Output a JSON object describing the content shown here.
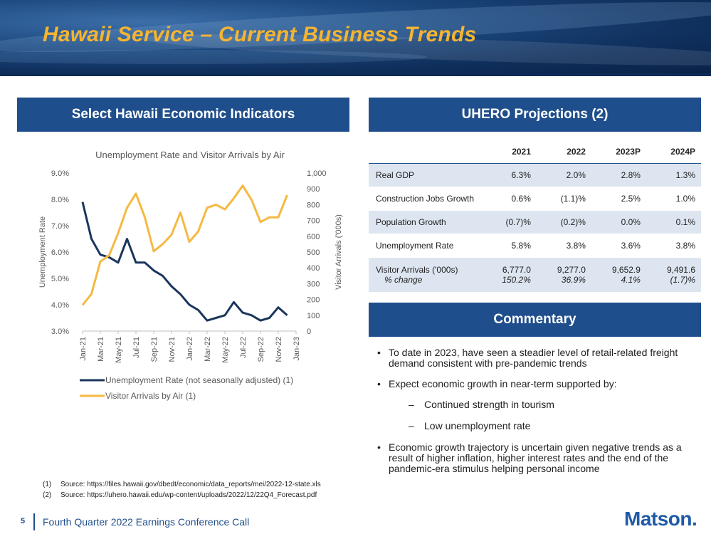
{
  "header": {
    "title": "Hawaii Service – Current Business Trends"
  },
  "left_panel": {
    "heading": "Select Hawaii Economic Indicators"
  },
  "right_panel": {
    "heading": "UHERO Projections (2)"
  },
  "commentary_panel": {
    "heading": "Commentary"
  },
  "chart_data": {
    "type": "line",
    "title": "Unemployment Rate and Visitor Arrivals by Air",
    "x": [
      "Jan-21",
      "Feb-21",
      "Mar-21",
      "Apr-21",
      "May-21",
      "Jun-21",
      "Jul-21",
      "Aug-21",
      "Sep-21",
      "Oct-21",
      "Nov-21",
      "Dec-21",
      "Jan-22",
      "Feb-22",
      "Mar-22",
      "Apr-22",
      "May-22",
      "Jun-22",
      "Jul-22",
      "Aug-22",
      "Sep-22",
      "Oct-22",
      "Nov-22",
      "Dec-22",
      "Jan-23"
    ],
    "x_tick_labels": [
      "Jan-21",
      "Mar-21",
      "May-21",
      "Jul-21",
      "Sep-21",
      "Nov-21",
      "Jan-22",
      "Mar-22",
      "May-22",
      "Jul-22",
      "Sep-22",
      "Nov-22",
      "Jan-23"
    ],
    "ylabel_left": "Unemployment Rate",
    "ylabel_right": "Visitor Arrivals ('000s)",
    "ylim_left": [
      3.0,
      9.0
    ],
    "ylim_right": [
      0,
      1000
    ],
    "y_ticks_left": [
      "3.0%",
      "4.0%",
      "5.0%",
      "6.0%",
      "7.0%",
      "8.0%",
      "9.0%"
    ],
    "y_ticks_right": [
      "0",
      "100",
      "200",
      "300",
      "400",
      "500",
      "600",
      "700",
      "800",
      "900",
      "1,000"
    ],
    "series": [
      {
        "name": "Unemployment Rate (not seasonally adjusted) (1)",
        "axis": "left",
        "color": "#1b365d",
        "values": [
          7.9,
          6.5,
          5.9,
          5.8,
          5.6,
          6.5,
          5.6,
          5.6,
          5.3,
          5.1,
          4.7,
          4.4,
          4.0,
          3.8,
          3.4,
          3.5,
          3.6,
          4.1,
          3.7,
          3.6,
          3.4,
          3.5,
          3.9,
          3.6,
          null
        ]
      },
      {
        "name": "Visitor Arrivals by Air (1)",
        "axis": "right",
        "color": "#f5b942",
        "values": [
          165,
          235,
          440,
          480,
          620,
          780,
          870,
          720,
          505,
          550,
          610,
          750,
          565,
          630,
          780,
          800,
          770,
          840,
          920,
          830,
          690,
          720,
          720,
          860,
          null
        ]
      }
    ],
    "legend_position": "bottom",
    "grid": false
  },
  "projections": {
    "headers": [
      "",
      "2021",
      "2022",
      "2023P",
      "2024P"
    ],
    "rows": [
      {
        "label": "Real GDP",
        "values": [
          "6.3%",
          "2.0%",
          "2.8%",
          "1.3%"
        ]
      },
      {
        "label": "Construction Jobs Growth",
        "values": [
          "0.6%",
          "(1.1)%",
          "2.5%",
          "1.0%"
        ]
      },
      {
        "label": "Population Growth",
        "values": [
          "(0.7)%",
          "(0.2)%",
          "0.0%",
          "0.1%"
        ]
      },
      {
        "label": "Unemployment Rate",
        "values": [
          "5.8%",
          "3.8%",
          "3.6%",
          "3.8%"
        ]
      },
      {
        "label": "Visitor Arrivals  ('000s)",
        "sublabel": "% change",
        "values": [
          "6,777.0",
          "9,277.0",
          "9,652.9",
          "9,491.6"
        ],
        "subvalues": [
          "150.2%",
          "36.9%",
          "4.1%",
          "(1.7)%"
        ]
      }
    ]
  },
  "commentary": {
    "bullet": "•",
    "dash": "–",
    "items": [
      "To date in 2023, have seen a steadier level of retail-related freight demand consistent with pre-pandemic trends",
      "Expect economic growth in near-term supported by:",
      "Economic growth trajectory is uncertain given negative trends as a result of higher inflation, higher interest rates and the end of the pandemic-era stimulus helping personal income"
    ],
    "subitems": [
      "Continued strength in tourism",
      "Low unemployment rate"
    ]
  },
  "notes": [
    {
      "num": "(1)",
      "text": "Source: https://files.hawaii.gov/dbedt/economic/data_reports/mei/2022-12-state.xls"
    },
    {
      "num": "(2)",
      "text": "Source: https://uhero.hawaii.edu/wp-content/uploads/2022/12/22Q4_Forecast.pdf"
    }
  ],
  "footer": {
    "page": "5",
    "text": "Fourth Quarter 2022 Earnings Conference Call",
    "logo": "Matson."
  }
}
